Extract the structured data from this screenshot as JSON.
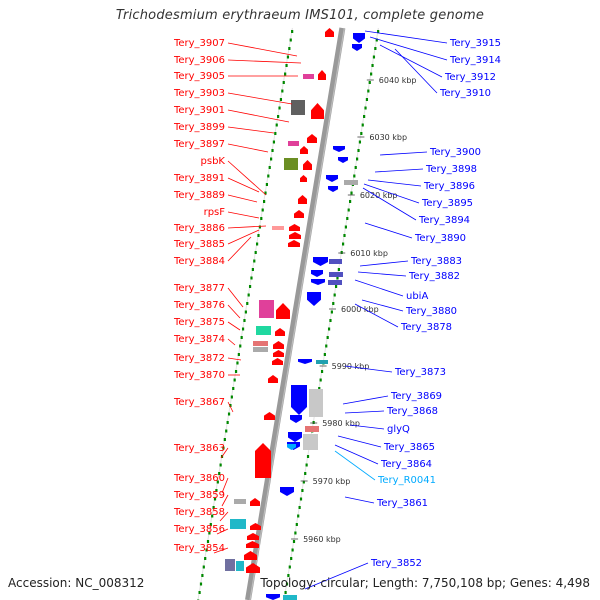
{
  "title": "Trichodesmium erythraeum IMS101, complete genome",
  "footer": {
    "accession": "Accession: NC_008312",
    "topology": "Topology: circular; Length: 7,750,108 bp; Genes: 4,498"
  },
  "colors": {
    "forward": "#ff0000",
    "reverse": "#0000ff",
    "rna": "#00aaff",
    "backbone": "#999999",
    "tick": "#008800"
  },
  "kbp_markers": [
    "6040 kbp",
    "6030 kbp",
    "6020 kbp",
    "6010 kbp",
    "6000 kbp",
    "5990 kbp",
    "5980 kbp",
    "5970 kbp",
    "5960 kbp"
  ],
  "left_genes": [
    "Tery_3907",
    "Tery_3906",
    "Tery_3905",
    "Tery_3903",
    "Tery_3901",
    "Tery_3899",
    "Tery_3897",
    "psbK",
    "Tery_3891",
    "Tery_3889",
    "rpsF",
    "Tery_3886",
    "Tery_3885",
    "Tery_3884",
    "Tery_3877",
    "Tery_3876",
    "Tery_3875",
    "Tery_3874",
    "Tery_3872",
    "Tery_3870",
    "Tery_3867",
    "Tery_3863",
    "Tery_3860",
    "Tery_3859",
    "Tery_3858",
    "Tery_3856",
    "Tery_3854"
  ],
  "right_genes": [
    {
      "name": "Tery_3915",
      "kind": "reverse"
    },
    {
      "name": "Tery_3914",
      "kind": "reverse"
    },
    {
      "name": "Tery_3912",
      "kind": "reverse"
    },
    {
      "name": "Tery_3910",
      "kind": "reverse"
    },
    {
      "name": "Tery_3900",
      "kind": "reverse"
    },
    {
      "name": "Tery_3898",
      "kind": "reverse"
    },
    {
      "name": "Tery_3896",
      "kind": "reverse"
    },
    {
      "name": "Tery_3895",
      "kind": "reverse"
    },
    {
      "name": "Tery_3894",
      "kind": "reverse"
    },
    {
      "name": "Tery_3890",
      "kind": "reverse"
    },
    {
      "name": "Tery_3883",
      "kind": "reverse"
    },
    {
      "name": "Tery_3882",
      "kind": "reverse"
    },
    {
      "name": "ubiA",
      "kind": "reverse"
    },
    {
      "name": "Tery_3880",
      "kind": "reverse"
    },
    {
      "name": "Tery_3878",
      "kind": "reverse"
    },
    {
      "name": "Tery_3873",
      "kind": "reverse"
    },
    {
      "name": "Tery_3869",
      "kind": "reverse"
    },
    {
      "name": "Tery_3868",
      "kind": "reverse"
    },
    {
      "name": "glyQ",
      "kind": "reverse"
    },
    {
      "name": "Tery_3865",
      "kind": "reverse"
    },
    {
      "name": "Tery_3864",
      "kind": "reverse"
    },
    {
      "name": "Tery_R0041",
      "kind": "rna"
    },
    {
      "name": "Tery_3861",
      "kind": "reverse"
    },
    {
      "name": "Tery_3852",
      "kind": "reverse"
    }
  ]
}
